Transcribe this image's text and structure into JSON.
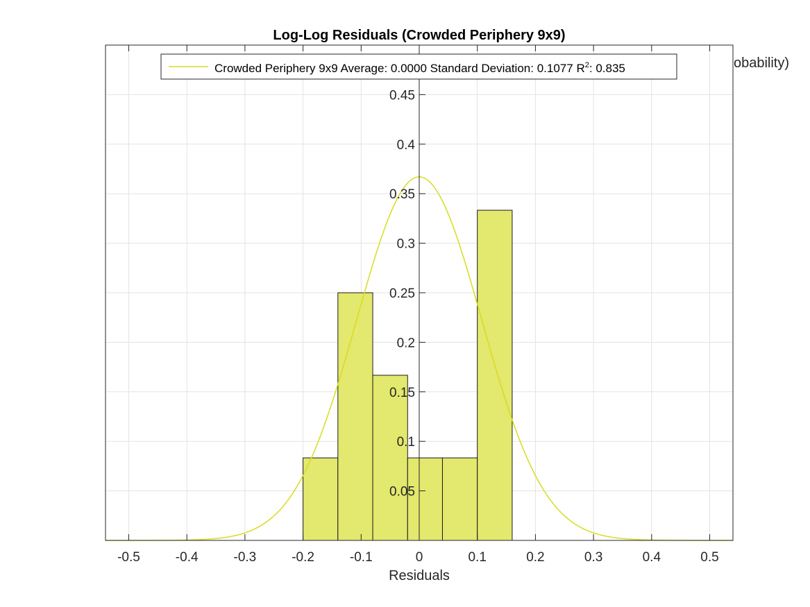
{
  "chart_data": {
    "type": "bar",
    "title": "Log-Log Residuals (Crowded Periphery 9x9)",
    "xlabel": "Residuals",
    "ylabel_fragment": "d to Probability)",
    "xlim": [
      -0.54,
      0.54
    ],
    "ylim": [
      0,
      0.5
    ],
    "grid": true,
    "legend_placement": "top",
    "xticks": [
      -0.5,
      -0.4,
      -0.3,
      -0.2,
      -0.1,
      0,
      0.1,
      0.2,
      0.3,
      0.4,
      0.5
    ],
    "xtick_labels": [
      "-0.5",
      "-0.4",
      "-0.3",
      "-0.2",
      "-0.1",
      "0",
      "0.1",
      "0.2",
      "0.3",
      "0.4",
      "0.5"
    ],
    "yticks": [
      0.05,
      0.1,
      0.15,
      0.2,
      0.25,
      0.3,
      0.35,
      0.4,
      0.45
    ],
    "ytick_labels": [
      "0.05",
      "0.1",
      "0.15",
      "0.2",
      "0.25",
      "0.3",
      "0.35",
      "0.4",
      "0.45"
    ],
    "bins": [
      {
        "x0": -0.2,
        "x1": -0.14,
        "value": 0.0833
      },
      {
        "x0": -0.14,
        "x1": -0.08,
        "value": 0.25
      },
      {
        "x0": -0.08,
        "x1": -0.02,
        "value": 0.1667
      },
      {
        "x0": -0.02,
        "x1": 0.04,
        "value": 0.0833
      },
      {
        "x0": 0.04,
        "x1": 0.1,
        "value": 0.0833
      },
      {
        "x0": 0.1,
        "x1": 0.16,
        "value": 0.3333
      }
    ],
    "series": [
      {
        "name": "Crowded Periphery 9x9",
        "kind": "normal-pdf-curve",
        "mean": 0.0,
        "std": 0.1077,
        "peak": 0.367
      }
    ],
    "legend": {
      "series_label": "Crowded Periphery 9x9",
      "average_label": "Average:",
      "average_value": "0.0000",
      "std_label": "Standard Deviation:",
      "std_value": "0.1077",
      "r2_label": "R",
      "r2_sup": "2",
      "r2_sep": ":",
      "r2_value": "0.835"
    },
    "colors": {
      "bar_fill": "#e3e86e",
      "bar_edge": "#1a1a1a",
      "curve": "#d8dc1e",
      "grid": "#e3e3e3",
      "axis": "#262626"
    }
  }
}
